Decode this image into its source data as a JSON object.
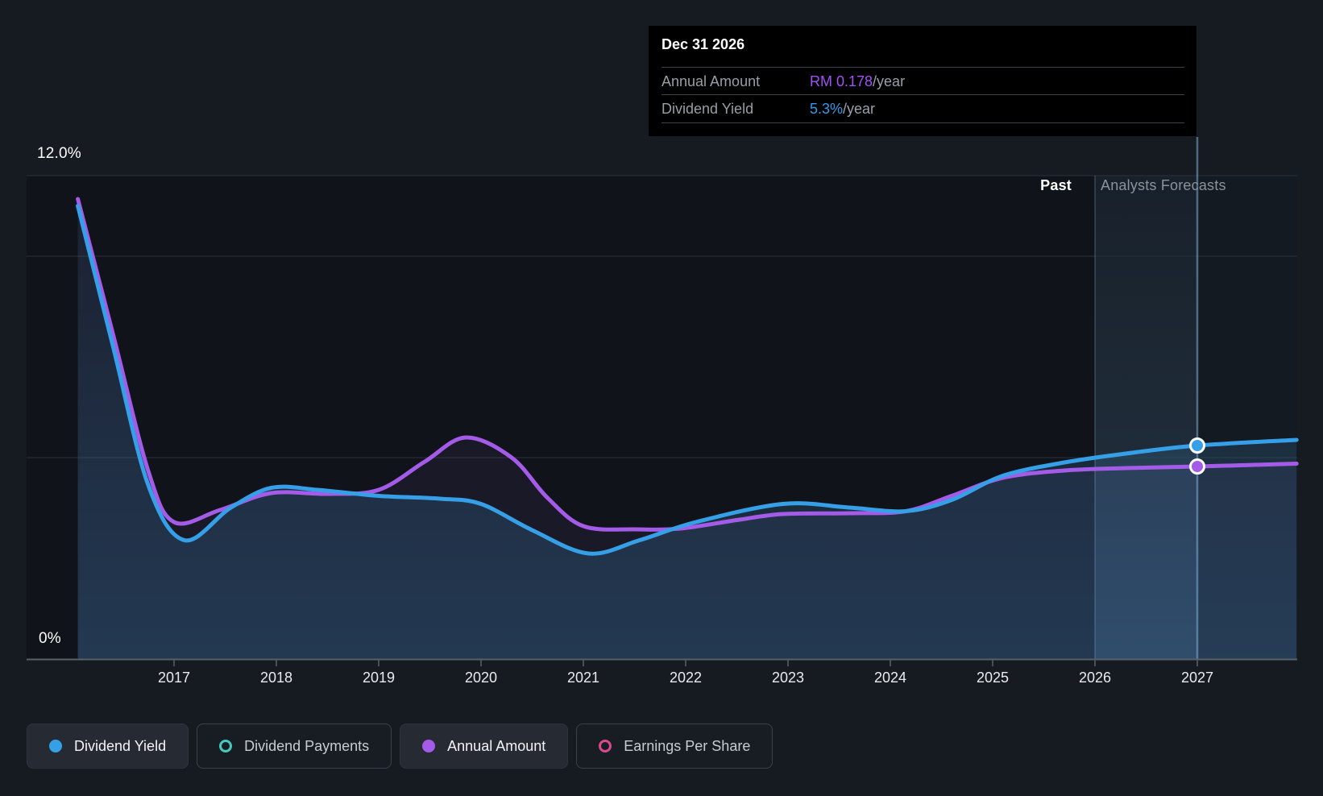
{
  "tooltip": {
    "date": "Dec 31 2026",
    "rows": [
      {
        "label": "Annual Amount",
        "value": "RM 0.178",
        "suffix": "/year",
        "color": "#a251f5"
      },
      {
        "label": "Dividend Yield",
        "value": "5.3%",
        "suffix": "/year",
        "color": "#2e9cee"
      }
    ]
  },
  "axis_labels": {
    "y_top": "12.0%",
    "y_bottom": "0%"
  },
  "sections": {
    "past_label": "Past",
    "forecast_label": "Analysts Forecasts"
  },
  "legend": [
    {
      "label": "Dividend Yield",
      "color": "#35a0e8",
      "style": "filled",
      "active": true
    },
    {
      "label": "Dividend Payments",
      "color": "#46c8bb",
      "style": "ring",
      "active": false
    },
    {
      "label": "Annual Amount",
      "color": "#a45be8",
      "style": "filled",
      "active": true
    },
    {
      "label": "Earnings Per Share",
      "color": "#d9498b",
      "style": "ring",
      "active": false
    }
  ],
  "chart_data": {
    "type": "line",
    "title": "Dividend yield history and forecast",
    "x_tick_labels": [
      "2017",
      "2018",
      "2019",
      "2020",
      "2021",
      "2022",
      "2023",
      "2024",
      "2025",
      "2026",
      "2027"
    ],
    "x_range_years": [
      2016.06,
      2027.97
    ],
    "ylim_percent": [
      0,
      12
    ],
    "y_gridline_values_percent": [
      12,
      10,
      5,
      0
    ],
    "grid": true,
    "past_forecast_divider_year": 2026.0,
    "hover_highlight_band_years": [
      2026.0,
      2027.0
    ],
    "hover_marker_year": 2027.0,
    "series": [
      {
        "name": "Dividend Yield",
        "color": "#35a0e8",
        "unit": "%",
        "marker_value_percent": 5.3,
        "points": [
          [
            2016.06,
            11.25
          ],
          [
            2016.4,
            7.8
          ],
          [
            2016.75,
            4.3
          ],
          [
            2017.1,
            2.95
          ],
          [
            2017.55,
            3.75
          ],
          [
            2017.95,
            4.25
          ],
          [
            2018.4,
            4.2
          ],
          [
            2019.0,
            4.05
          ],
          [
            2019.6,
            3.98
          ],
          [
            2020.0,
            3.85
          ],
          [
            2020.5,
            3.2
          ],
          [
            2021.05,
            2.62
          ],
          [
            2021.55,
            2.95
          ],
          [
            2022.1,
            3.4
          ],
          [
            2022.95,
            3.85
          ],
          [
            2023.6,
            3.76
          ],
          [
            2024.15,
            3.67
          ],
          [
            2024.6,
            3.95
          ],
          [
            2025.1,
            4.55
          ],
          [
            2025.7,
            4.88
          ],
          [
            2026.3,
            5.1
          ],
          [
            2027.0,
            5.3
          ],
          [
            2027.97,
            5.44
          ]
        ]
      },
      {
        "name": "Annual Amount",
        "color": "#a45be8",
        "unit": "RM (plotted on hidden scale, values below are visual %-scale positions)",
        "marker_value_percent": 4.78,
        "known_point": {
          "date": "Dec 31 2026",
          "value": "RM 0.178/year"
        },
        "points": [
          [
            2016.06,
            11.42
          ],
          [
            2016.4,
            8.1
          ],
          [
            2016.75,
            4.65
          ],
          [
            2017.0,
            3.4
          ],
          [
            2017.45,
            3.7
          ],
          [
            2017.95,
            4.12
          ],
          [
            2018.5,
            4.1
          ],
          [
            2019.0,
            4.2
          ],
          [
            2019.45,
            4.9
          ],
          [
            2019.85,
            5.5
          ],
          [
            2020.3,
            5.0
          ],
          [
            2020.65,
            4.0
          ],
          [
            2021.0,
            3.3
          ],
          [
            2021.5,
            3.22
          ],
          [
            2021.95,
            3.24
          ],
          [
            2022.5,
            3.45
          ],
          [
            2022.95,
            3.6
          ],
          [
            2023.6,
            3.62
          ],
          [
            2024.15,
            3.67
          ],
          [
            2024.6,
            4.05
          ],
          [
            2025.1,
            4.5
          ],
          [
            2025.7,
            4.68
          ],
          [
            2026.3,
            4.74
          ],
          [
            2027.0,
            4.78
          ],
          [
            2027.97,
            4.85
          ]
        ]
      }
    ],
    "legend_position": "bottom"
  }
}
